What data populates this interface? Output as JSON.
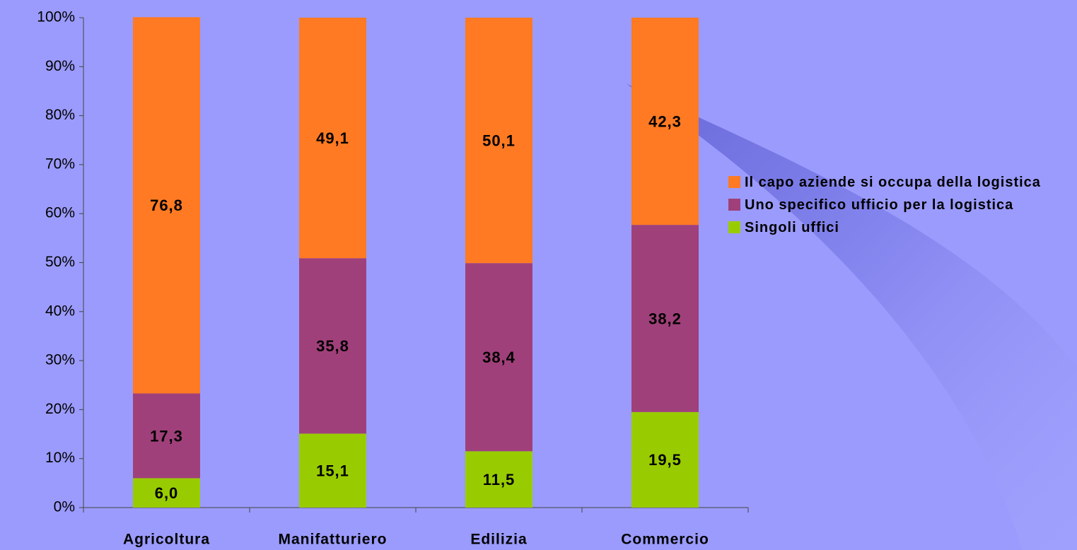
{
  "chart_data": {
    "type": "stacked-bar",
    "categories": [
      "Agricoltura",
      "Manifatturiero",
      "Edilizia",
      "Commercio"
    ],
    "series": [
      {
        "name": "Singoli uffici",
        "color": "#99cc00",
        "values": [
          6.0,
          15.1,
          11.5,
          19.5
        ],
        "value_labels": [
          "6,0",
          "15,1",
          "11,5",
          "19,5"
        ]
      },
      {
        "name": "Uno specifico ufficio per la logistica",
        "color": "#a0407a",
        "values": [
          17.3,
          35.8,
          38.4,
          38.2
        ],
        "value_labels": [
          "17,3",
          "35,8",
          "38,4",
          "38,2"
        ]
      },
      {
        "name": "Il capo aziende si occupa della logistica",
        "color": "#ff7a22",
        "values": [
          76.8,
          49.1,
          50.1,
          42.3
        ],
        "value_labels": [
          "76,8",
          "49,1",
          "50,1",
          "42,3"
        ]
      }
    ],
    "ylim": [
      0,
      100
    ],
    "yticks": [
      {
        "value": 0,
        "label": "0%"
      },
      {
        "value": 10,
        "label": "10%"
      },
      {
        "value": 20,
        "label": "20%"
      },
      {
        "value": 30,
        "label": "30%"
      },
      {
        "value": 40,
        "label": "40%"
      },
      {
        "value": 50,
        "label": "50%"
      },
      {
        "value": 60,
        "label": "60%"
      },
      {
        "value": 70,
        "label": "70%"
      },
      {
        "value": 80,
        "label": "80%"
      },
      {
        "value": 90,
        "label": "90%"
      },
      {
        "value": 100,
        "label": "100%"
      }
    ],
    "legend": "right"
  }
}
